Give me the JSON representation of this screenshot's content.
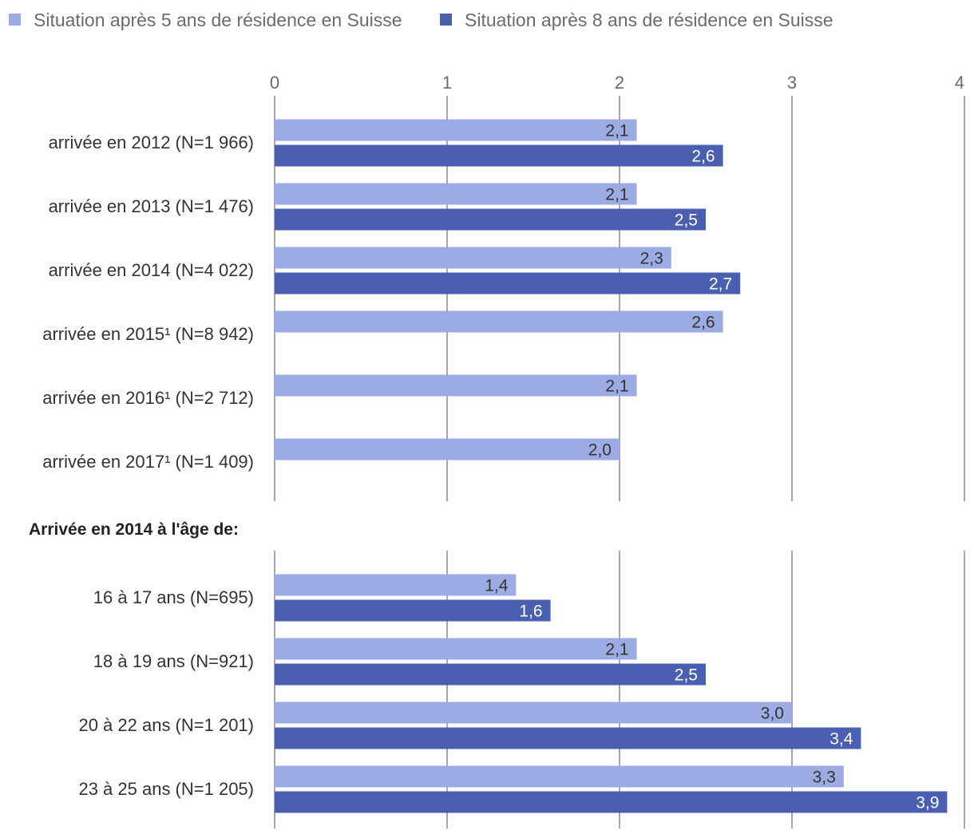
{
  "chart_data": {
    "type": "bar",
    "orientation": "horizontal",
    "xlim": [
      0,
      4
    ],
    "ticks": [
      "0",
      "1",
      "2",
      "3",
      "4"
    ],
    "grid": true,
    "legend_position": "top-left",
    "series": [
      {
        "name": "Situation après 5 ans de résidence en Suisse",
        "color": "#9dabe5"
      },
      {
        "name": "Situation après 8 ans de résidence en Suisse",
        "color": "#4a5fb0"
      }
    ],
    "groups": [
      {
        "title": "",
        "categories": [
          {
            "label": "arrivée en 2012 (N=1 966)",
            "values": [
              2.1,
              2.6
            ],
            "value_labels": [
              "2,1",
              "2,6"
            ]
          },
          {
            "label": "arrivée en 2013 (N=1 476)",
            "values": [
              2.1,
              2.5
            ],
            "value_labels": [
              "2,1",
              "2,5"
            ]
          },
          {
            "label": "arrivée en 2014 (N=4 022)",
            "values": [
              2.3,
              2.7
            ],
            "value_labels": [
              "2,3",
              "2,7"
            ]
          },
          {
            "label": "arrivée en 2015¹ (N=8 942)",
            "values": [
              2.6,
              null
            ],
            "value_labels": [
              "2,6",
              null
            ]
          },
          {
            "label": "arrivée en 2016¹ (N=2 712)",
            "values": [
              2.1,
              null
            ],
            "value_labels": [
              "2,1",
              null
            ]
          },
          {
            "label": "arrivée en 2017¹ (N=1 409)",
            "values": [
              2.0,
              null
            ],
            "value_labels": [
              "2,0",
              null
            ]
          }
        ]
      },
      {
        "title": "Arrivée en 2014 à l'âge de:",
        "categories": [
          {
            "label": "16 à 17 ans (N=695)",
            "values": [
              1.4,
              1.6
            ],
            "value_labels": [
              "1,4",
              "1,6"
            ]
          },
          {
            "label": "18 à 19 ans (N=921)",
            "values": [
              2.1,
              2.5
            ],
            "value_labels": [
              "2,1",
              "2,5"
            ]
          },
          {
            "label": "20 à 22 ans (N=1 201)",
            "values": [
              3.0,
              3.4
            ],
            "value_labels": [
              "3,0",
              "3,4"
            ]
          },
          {
            "label": "23 à 25 ans (N=1 205)",
            "values": [
              3.3,
              3.9
            ],
            "value_labels": [
              "3,3",
              "3,9"
            ]
          }
        ]
      }
    ]
  }
}
